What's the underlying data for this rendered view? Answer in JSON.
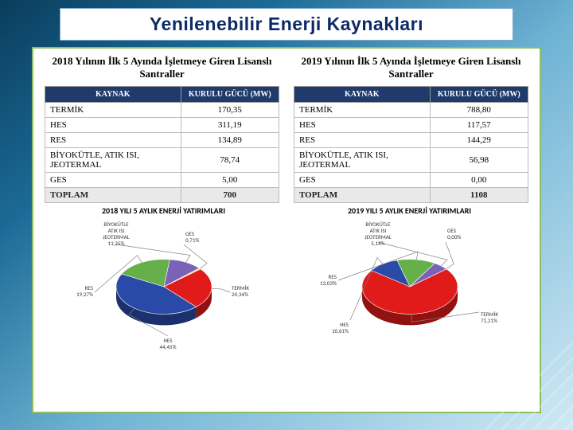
{
  "title": "Yenilenebilir Enerji Kaynakları",
  "panels": {
    "left": {
      "title": "2018 Yılının İlk 5 Ayında İşletmeye Giren\nLisanslı Santraller",
      "columns": [
        "KAYNAK",
        "KURULU GÜCÜ (MW)"
      ],
      "rows": [
        [
          "TERMİK",
          "170,35"
        ],
        [
          "HES",
          "311,19"
        ],
        [
          "RES",
          "134,89"
        ],
        [
          "BİYOKÜTLE, ATIK ISI, JEOTERMAL",
          "78,74"
        ],
        [
          "GES",
          "5,00"
        ]
      ],
      "total": [
        "TOPLAM",
        "700"
      ],
      "chart_title": "2018 YILI 5 AYLIK ENERJİ YATIRIMLARI",
      "pie": {
        "type": "pie",
        "slices": [
          {
            "label": "TERMİK",
            "pct": "24,34%",
            "color": "#e11a1a"
          },
          {
            "label": "HES",
            "pct": "44,45%",
            "color": "#2a4aa8"
          },
          {
            "label": "RES",
            "pct": "19,27%",
            "color": "#66b04a"
          },
          {
            "label": "BİYOKÜTLE, ATIK ISI, JEOTERMAL",
            "pct": "11,25%",
            "color": "#7a62b8"
          },
          {
            "label": "GES",
            "pct": "0,71%",
            "color": "#f2d542"
          }
        ],
        "view_tilt": 55,
        "depth": 14,
        "radius": 60,
        "label_fontsize": 7,
        "label_font": "Calibri, Arial, sans-serif",
        "label_color": "#3a3a3a",
        "leader_color": "#808080"
      }
    },
    "right": {
      "title": "2019 Yılının İlk 5 Ayında İşletmeye Giren\nLisanslı Santraller",
      "columns": [
        "KAYNAK",
        "KURULU GÜCÜ (MW)"
      ],
      "rows": [
        [
          "TERMİK",
          "788,80"
        ],
        [
          "HES",
          "117,57"
        ],
        [
          "RES",
          "144,29"
        ],
        [
          "BİYOKÜTLE, ATIK ISI, JEOTERMAL",
          "56,98"
        ],
        [
          "GES",
          "0,00"
        ]
      ],
      "total": [
        "TOPLAM",
        "1108"
      ],
      "chart_title": "2019 YILI 5 AYLIK ENERJİ YATIRIMLARI",
      "pie": {
        "type": "pie",
        "slices": [
          {
            "label": "TERMİK",
            "pct": "71,21%",
            "color": "#e11a1a"
          },
          {
            "label": "HES",
            "pct": "10,61%",
            "color": "#2a4aa8"
          },
          {
            "label": "RES",
            "pct": "13,03%",
            "color": "#66b04a"
          },
          {
            "label": "BİYOKÜTLE, ATIK ISI, JEOTERMAL",
            "pct": "5,14%",
            "color": "#7a62b8"
          },
          {
            "label": "GES",
            "pct": "0,00%",
            "color": "#f2d542"
          }
        ],
        "view_tilt": 55,
        "depth": 14,
        "radius": 60,
        "label_fontsize": 7,
        "label_font": "Calibri, Arial, sans-serif",
        "label_color": "#3a3a3a",
        "leader_color": "#808080"
      }
    }
  },
  "background": {
    "gradient_from": "#0a3d5c",
    "gradient_to": "#d0e9f4"
  }
}
